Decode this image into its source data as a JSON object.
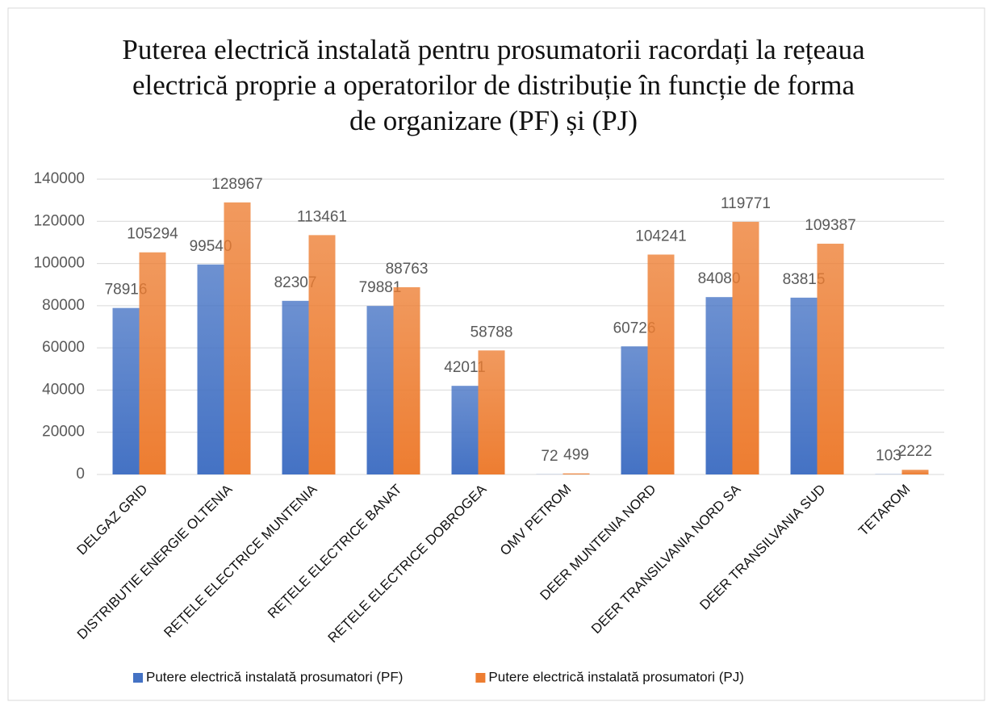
{
  "chart_data": {
    "type": "bar",
    "title": "Puterea electrică instalată pentru prosumatorii racordați la rețeaua electrică proprie a operatorilor de distribuție în funcție de forma de organizare (PF) și (PJ)",
    "categories": [
      "DELGAZ GRID",
      "DISTRIBUTIE ENERGIE OLTENIA",
      "REȚELE ELECTRICE MUNTENIA",
      "REȚELE ELECTRICE BANAT",
      "REȚELE ELECTRICE DOBROGEA",
      "OMV PETROM",
      "DEER MUNTENIA NORD",
      "DEER TRANSILVANIA NORD SA",
      "DEER TRANSILVANIA SUD",
      "TETAROM"
    ],
    "series": [
      {
        "name": "Putere electrică instalată prosumatori (PF)",
        "color": "#4472c4",
        "values": [
          78916,
          99540,
          82307,
          79881,
          42011,
          72,
          60726,
          84080,
          83815,
          103
        ]
      },
      {
        "name": "Putere electrică instalată prosumatori (PJ)",
        "color": "#ed7d31",
        "values": [
          105294,
          128967,
          113461,
          88763,
          58788,
          499,
          104241,
          119771,
          109387,
          2222
        ]
      }
    ],
    "ylim": [
      0,
      140000
    ],
    "yticks": [
      0,
      20000,
      40000,
      60000,
      80000,
      100000,
      120000,
      140000
    ],
    "grid": true,
    "legend": "bottom"
  }
}
